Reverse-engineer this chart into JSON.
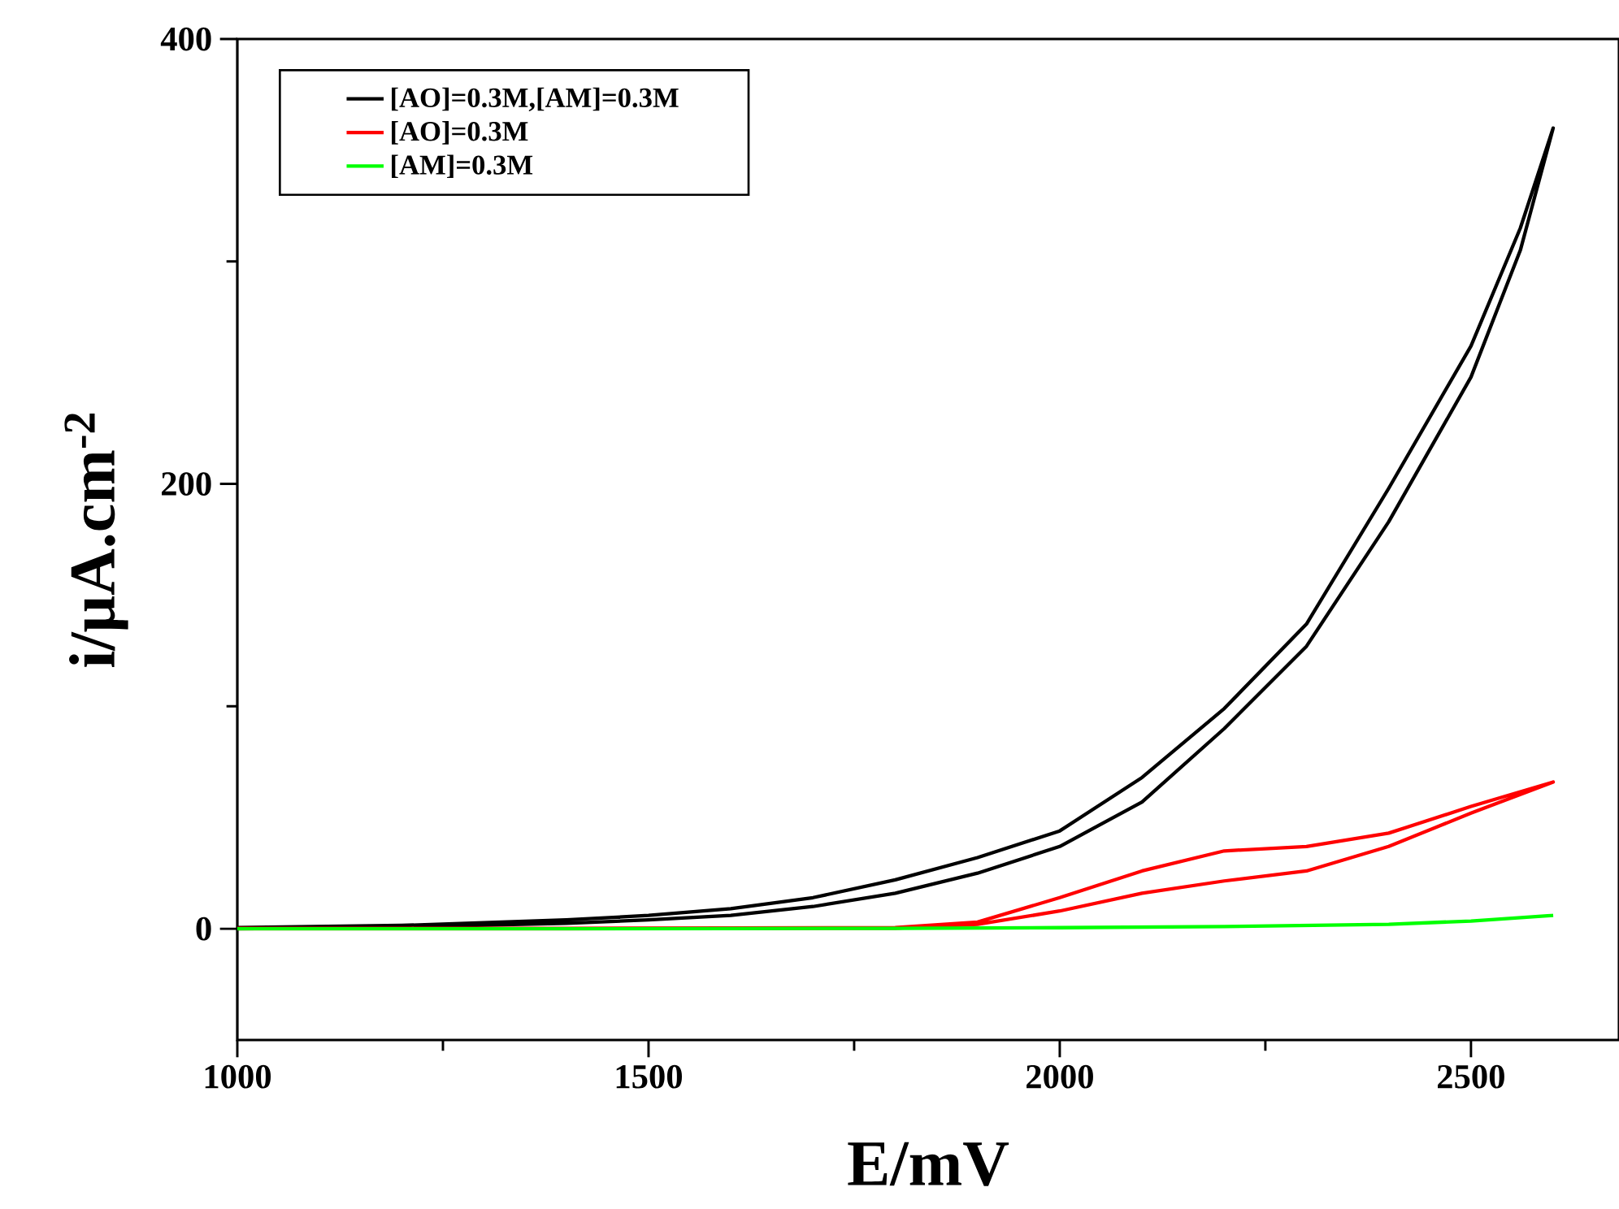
{
  "chart_data": {
    "type": "line",
    "xlabel": "E/mV",
    "ylabel": "i/μA.cm$^{-2}$",
    "xlim": [
      1000,
      2680
    ],
    "ylim": [
      -50,
      400
    ],
    "xticks": [
      1000,
      1500,
      2000,
      2500
    ],
    "yticks": [
      0,
      200,
      400
    ],
    "legend": "top left",
    "series": [
      {
        "name": "[AO]=0.3M,[AM]=0.3M",
        "color": "#000000",
        "x": [
          1000,
          1200,
          1400,
          1500,
          1600,
          1700,
          1800,
          1900,
          2000,
          2100,
          2200,
          2300,
          2400,
          2500,
          2560,
          2600,
          2560,
          2500,
          2400,
          2300,
          2200,
          2100,
          2000,
          1900,
          1800,
          1700,
          1600,
          1500,
          1400,
          1200,
          1000
        ],
        "values": [
          0,
          0.8,
          2.5,
          4,
          6,
          10,
          16,
          25,
          37,
          57,
          90,
          127,
          183,
          248,
          305,
          360,
          315,
          262,
          198,
          137,
          99,
          68,
          44,
          32,
          22,
          14,
          9,
          6,
          4,
          1.5,
          0.5
        ]
      },
      {
        "name": "[AO]=0.3M",
        "color": "#ff0000",
        "x": [
          1000,
          1400,
          1800,
          1900,
          2000,
          2100,
          2200,
          2300,
          2400,
          2500,
          2600,
          2500,
          2400,
          2300,
          2200,
          2100,
          2000,
          1900,
          1800,
          1400,
          1000
        ],
        "values": [
          0,
          0,
          0.3,
          2,
          8,
          16,
          21.5,
          26,
          37,
          52,
          66,
          55,
          43,
          37,
          35,
          26,
          14,
          3,
          0.5,
          0.2,
          0.2
        ]
      },
      {
        "name": "[AM]=0.3M",
        "color": "#00ff00",
        "x": [
          1000,
          1400,
          1800,
          2000,
          2200,
          2400,
          2500,
          2600
        ],
        "values": [
          0,
          0,
          0.2,
          0.5,
          1,
          2,
          3.5,
          6
        ]
      }
    ]
  }
}
